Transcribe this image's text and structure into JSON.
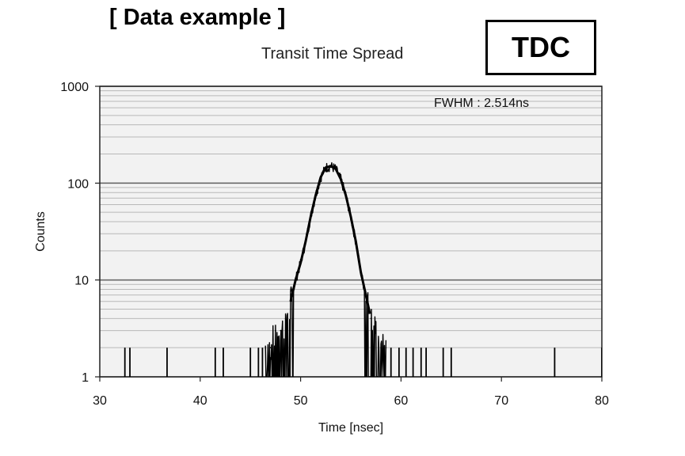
{
  "heading": "[ Data example ]",
  "badge": "TDC",
  "chart_data": {
    "type": "line",
    "title": "Transit Time Spread",
    "xlabel": "Time [nsec]",
    "ylabel": "Counts",
    "xlim": [
      30,
      80
    ],
    "ylim": [
      1,
      1000
    ],
    "yscale": "log",
    "grid": true,
    "x_ticks": [
      30,
      40,
      50,
      60,
      70,
      80
    ],
    "y_ticks": [
      1,
      10,
      100,
      1000
    ],
    "annotations": [
      "FWHM : 2.514ns"
    ],
    "series": [
      {
        "peak_x": 53.0,
        "peak_y": 150,
        "fwhm": 2.514,
        "x": [
          46.5,
          47.0,
          47.5,
          48.0,
          48.5,
          49.0,
          49.5,
          50.0,
          50.5,
          51.0,
          51.5,
          52.0,
          52.5,
          53.0,
          53.5,
          54.0,
          54.5,
          55.0,
          55.5,
          56.0,
          56.5,
          57.0,
          57.5,
          58.0,
          58.5
        ],
        "y": [
          2,
          2,
          3,
          3,
          4,
          6,
          10,
          15,
          25,
          45,
          75,
          115,
          145,
          150,
          140,
          110,
          75,
          45,
          25,
          12,
          7,
          4,
          3,
          2,
          2
        ],
        "noise_x": [
          32.5,
          33.0,
          36.7,
          41.5,
          42.3,
          45.0,
          45.8,
          46.2,
          59.0,
          59.8,
          60.5,
          61.2,
          62.0,
          62.5,
          64.2,
          65.0,
          75.3,
          80.0
        ],
        "noise_y": [
          2,
          2,
          2,
          2,
          2,
          2,
          2,
          2,
          2,
          2,
          2,
          2,
          2,
          2,
          2,
          2,
          2,
          2
        ]
      }
    ]
  }
}
